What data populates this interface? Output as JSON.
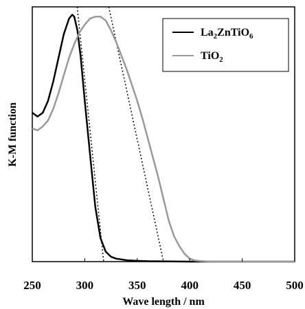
{
  "chart_data": {
    "type": "line",
    "title": "",
    "xlabel": "Wave length / nm",
    "ylabel": "K-M function",
    "xlim": [
      250,
      500
    ],
    "ylim": [
      0,
      1.3
    ],
    "xticks": [
      "250",
      "300",
      "350",
      "400",
      "450",
      "500"
    ],
    "grid": false,
    "legend": {
      "position": "top-right",
      "entries": [
        {
          "base": "La",
          "sub1": "2",
          "mid": "ZnTiO",
          "sub2": "6"
        },
        {
          "base": "TiO",
          "sub1": "2",
          "mid": "",
          "sub2": ""
        }
      ]
    },
    "series": [
      {
        "name": "La2ZnTiO6",
        "color": "#000000",
        "x": [
          250,
          255,
          260,
          265,
          270,
          275,
          280,
          285,
          288,
          290,
          293,
          296,
          300,
          305,
          310,
          315,
          320,
          325,
          330,
          340,
          350,
          360,
          400,
          450,
          500
        ],
        "y": [
          0.76,
          0.74,
          0.76,
          0.82,
          0.92,
          1.04,
          1.16,
          1.24,
          1.26,
          1.25,
          1.18,
          1.05,
          0.82,
          0.55,
          0.28,
          0.12,
          0.05,
          0.025,
          0.015,
          0.007,
          0.004,
          0.002,
          0.0,
          0.0,
          0.0
        ]
      },
      {
        "name": "TiO2",
        "color": "#999999",
        "x": [
          250,
          255,
          260,
          265,
          270,
          275,
          280,
          285,
          290,
          295,
          300,
          305,
          310,
          315,
          320,
          325,
          330,
          335,
          340,
          345,
          350,
          355,
          360,
          365,
          370,
          375,
          380,
          385,
          390,
          395,
          400,
          405,
          410,
          420,
          450,
          500
        ],
        "y": [
          0.68,
          0.67,
          0.69,
          0.72,
          0.78,
          0.86,
          0.95,
          1.04,
          1.11,
          1.17,
          1.21,
          1.24,
          1.25,
          1.25,
          1.23,
          1.18,
          1.12,
          1.05,
          0.98,
          0.9,
          0.82,
          0.73,
          0.63,
          0.53,
          0.43,
          0.32,
          0.21,
          0.13,
          0.08,
          0.04,
          0.015,
          0.006,
          0.003,
          0.0,
          0.0,
          0.0
        ]
      }
    ],
    "tangent_lines": [
      {
        "for": "La2ZnTiO6",
        "x": [
          285,
          318
        ],
        "y": [
          1.7,
          0.0
        ],
        "style": "dotted"
      },
      {
        "for": "TiO2",
        "x": [
          310,
          375
        ],
        "y": [
          1.62,
          0.0
        ],
        "style": "dotted"
      }
    ]
  }
}
